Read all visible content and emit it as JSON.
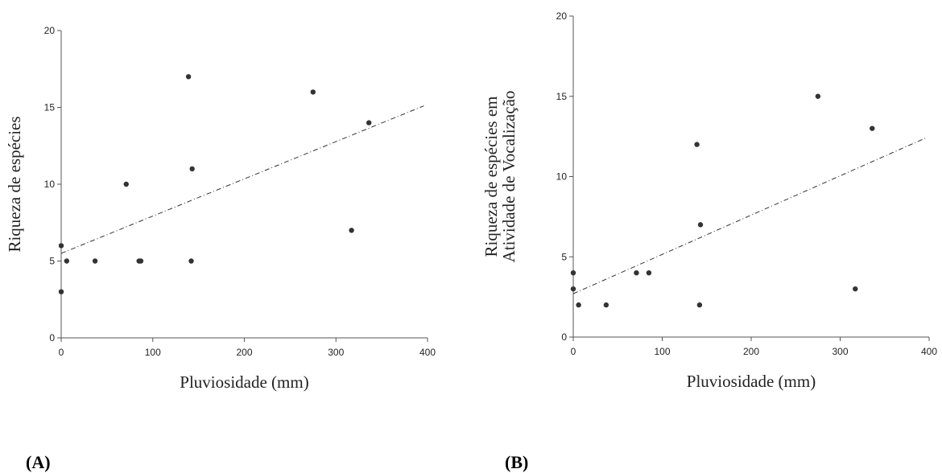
{
  "chart_data": [
    {
      "type": "scatter",
      "panel_label": "(A)",
      "xlabel": "Pluviosidade (mm)",
      "ylabel_lines": [
        "Riqueza de espécies"
      ],
      "xlim": [
        0,
        400
      ],
      "ylim": [
        0,
        20
      ],
      "xticks": [
        0,
        100,
        200,
        300,
        400
      ],
      "yticks": [
        0,
        5,
        10,
        15,
        20
      ],
      "grid": false,
      "points": [
        {
          "x": 0,
          "y": 6
        },
        {
          "x": 0,
          "y": 3
        },
        {
          "x": 6,
          "y": 5
        },
        {
          "x": 37,
          "y": 5
        },
        {
          "x": 71,
          "y": 10
        },
        {
          "x": 85,
          "y": 5
        },
        {
          "x": 87,
          "y": 5
        },
        {
          "x": 139,
          "y": 17
        },
        {
          "x": 142,
          "y": 5
        },
        {
          "x": 143,
          "y": 11
        },
        {
          "x": 275,
          "y": 16
        },
        {
          "x": 317,
          "y": 7
        },
        {
          "x": 336,
          "y": 14
        }
      ],
      "trendline": {
        "x": [
          0,
          396
        ],
        "y": [
          5.5,
          15.1
        ],
        "style": "dash-dot"
      }
    },
    {
      "type": "scatter",
      "panel_label": "(B)",
      "xlabel": "Pluviosidade (mm)",
      "ylabel_lines": [
        "Riqueza de espécies em",
        "Atividade de Vocalização"
      ],
      "xlim": [
        0,
        400
      ],
      "ylim": [
        0,
        20
      ],
      "xticks": [
        0,
        100,
        200,
        300,
        400
      ],
      "yticks": [
        0,
        5,
        10,
        15,
        20
      ],
      "grid": false,
      "points": [
        {
          "x": 0,
          "y": 4
        },
        {
          "x": 0,
          "y": 3
        },
        {
          "x": 6,
          "y": 2
        },
        {
          "x": 37,
          "y": 2
        },
        {
          "x": 71,
          "y": 4
        },
        {
          "x": 85,
          "y": 4
        },
        {
          "x": 139,
          "y": 12
        },
        {
          "x": 142,
          "y": 2
        },
        {
          "x": 143,
          "y": 7
        },
        {
          "x": 275,
          "y": 15
        },
        {
          "x": 317,
          "y": 3
        },
        {
          "x": 336,
          "y": 13
        }
      ],
      "trendline": {
        "x": [
          0,
          396
        ],
        "y": [
          2.7,
          12.4
        ],
        "style": "dash-dot"
      }
    }
  ]
}
